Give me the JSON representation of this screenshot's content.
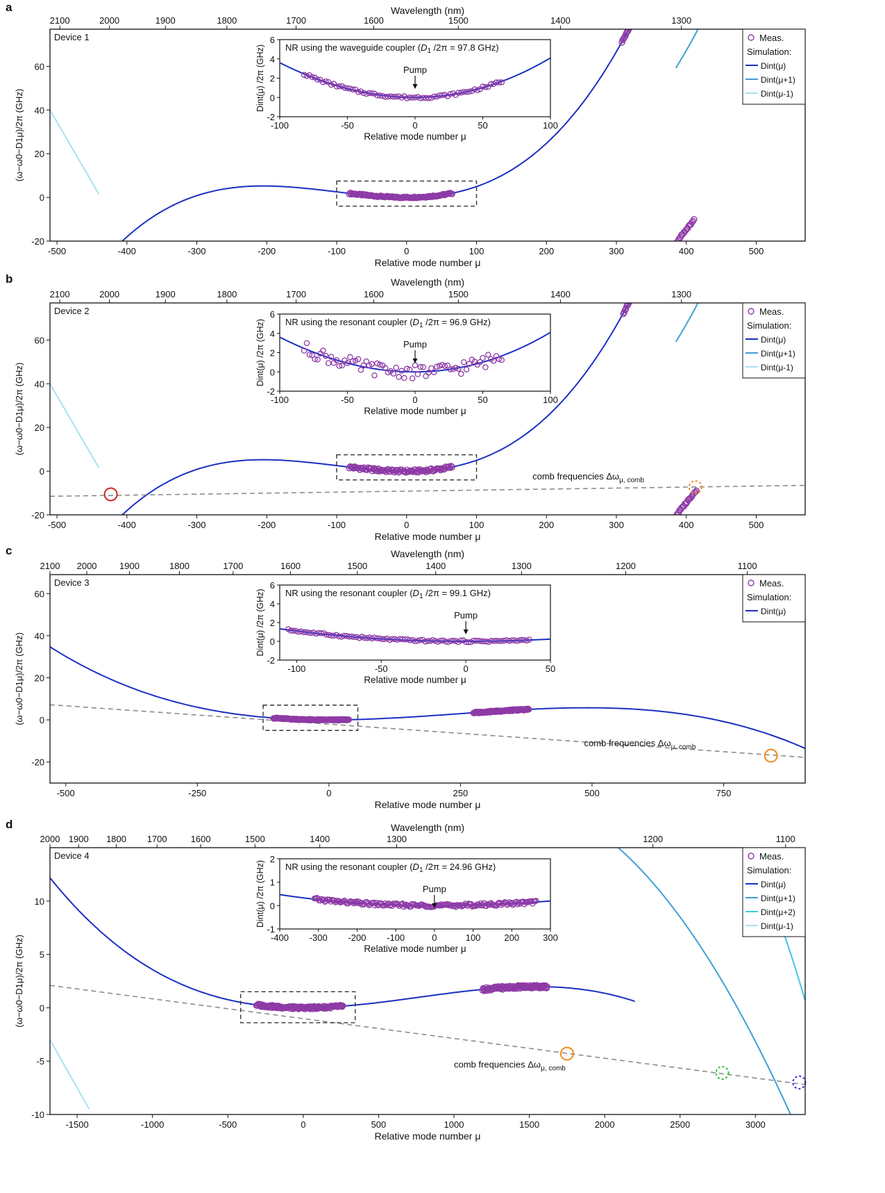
{
  "colors": {
    "dint": "#1b2fc2",
    "dint_p1": "#3f9fd6",
    "dint_p2": "#3ec6ea",
    "dint_m1": "#a9e0f0",
    "meas": "#8e3aa6",
    "comb": "#8c8c8c",
    "box": "#333333",
    "circle_red": "#cc2222",
    "circle_orange": "#f08a20",
    "circle_green": "#2ec02e",
    "circle_blue": "#3030e0"
  },
  "chart_data": [
    {
      "panel": "a",
      "type": "scatter",
      "device_label": "Device 1",
      "xlabel": "Relative mode number μ",
      "ylabel": "(ω−ω0−D1μ)/2π (GHz)",
      "top_axis_label": "Wavelength (nm)",
      "xlim": [
        -510,
        570
      ],
      "ylim": [
        -20,
        77
      ],
      "xticks": [
        -500,
        -400,
        -300,
        -200,
        -100,
        0,
        100,
        200,
        300,
        400,
        500
      ],
      "yticks": [
        -20,
        0,
        20,
        40,
        60
      ],
      "top_ticks": [
        {
          "label": "2100",
          "mu": -496
        },
        {
          "label": "2000",
          "mu": -425
        },
        {
          "label": "1900",
          "mu": -345
        },
        {
          "label": "1800",
          "mu": -257
        },
        {
          "label": "1700",
          "mu": -158
        },
        {
          "label": "1600",
          "mu": -47
        },
        {
          "label": "1500",
          "mu": 74
        },
        {
          "label": "1400",
          "mu": 220
        },
        {
          "label": "1300",
          "mu": 393
        }
      ],
      "curves": [
        {
          "name": "Dint(μ)",
          "color_key": "dint",
          "coef": [
            0,
            0,
            0.000375,
            1.22e-06
          ],
          "mu_shift": 0,
          "range": [
            -510,
            570
          ]
        },
        {
          "name": "Dint(μ+1)",
          "color_key": "dint_p1",
          "coef": [
            0,
            0,
            0.000375,
            1.22e-06
          ],
          "mu_shift": -99,
          "offset": 0,
          "range": [
            385,
            570
          ]
        },
        {
          "name": "Dint(μ-1)",
          "color_key": "dint_m1",
          "coef": [
            40,
            -0.55,
            0,
            0
          ],
          "mu_shift": 510,
          "range": [
            -510,
            -440
          ]
        }
      ],
      "measurements": [
        {
          "range": [
            -82,
            65
          ],
          "step": 1.5,
          "coef": [
            0,
            0,
            0.000375,
            1.22e-06
          ],
          "noise": 0.3
        },
        {
          "range": [
            308,
            388
          ],
          "step": 1.2,
          "coef": [
            0,
            0,
            0.000375,
            1.22e-06
          ],
          "noise": 0.4
        },
        {
          "range": [
            387,
            412
          ],
          "step": 1.5,
          "line": [
            -20,
            0.4
          ],
          "noise": 0.4
        }
      ],
      "dashed_box": {
        "x": [
          -100,
          100
        ],
        "y": [
          -4,
          7.5
        ]
      },
      "legend": [
        "Meas.",
        "Simulation:",
        "Dint(μ)",
        "Dint(μ+1)",
        "Dint(μ-1)"
      ],
      "inset": {
        "title": "NR using the waveguide coupler (D1/2π = 97.8 GHz)",
        "title_parts": [
          "NR using the waveguide coupler (",
          "D",
          "1",
          " /2π = 97.8 GHz)"
        ],
        "xlabel": "Relative mode number μ",
        "ylabel": "Dint(μ) /2π (GHz)",
        "xlim": [
          -100,
          100
        ],
        "ylim": [
          -2,
          6
        ],
        "xticks": [
          -100,
          -50,
          0,
          50,
          100
        ],
        "yticks": [
          -2,
          0,
          2,
          4,
          6
        ],
        "annotation": "Pump",
        "curve_coef": [
          0,
          0.0005,
          0.000385,
          2e-07
        ],
        "meas_range": [
          -82,
          65
        ],
        "meas_step": 2,
        "meas_noise": 0.12
      }
    },
    {
      "panel": "b",
      "type": "scatter",
      "device_label": "Device 2",
      "xlabel": "Relative mode number μ",
      "ylabel": "(ω−ω0−D1μ)/2π (GHz)",
      "top_axis_label": "Wavelength (nm)",
      "xlim": [
        -510,
        570
      ],
      "ylim": [
        -20,
        77
      ],
      "xticks": [
        -500,
        -400,
        -300,
        -200,
        -100,
        0,
        100,
        200,
        300,
        400,
        500
      ],
      "yticks": [
        -20,
        0,
        20,
        40,
        60
      ],
      "top_ticks": [
        {
          "label": "2100",
          "mu": -496
        },
        {
          "label": "2000",
          "mu": -425
        },
        {
          "label": "1900",
          "mu": -345
        },
        {
          "label": "1800",
          "mu": -257
        },
        {
          "label": "1700",
          "mu": -158
        },
        {
          "label": "1600",
          "mu": -47
        },
        {
          "label": "1500",
          "mu": 74
        },
        {
          "label": "1400",
          "mu": 220
        },
        {
          "label": "1300",
          "mu": 393
        }
      ],
      "curves": [
        {
          "name": "Dint(μ)",
          "color_key": "dint",
          "coef": [
            0,
            0,
            0.000375,
            1.22e-06
          ],
          "mu_shift": 0,
          "range": [
            -510,
            570
          ]
        },
        {
          "name": "Dint(μ+1)",
          "color_key": "dint_p1",
          "coef": [
            0,
            0,
            0.000375,
            1.22e-06
          ],
          "mu_shift": -99,
          "range": [
            385,
            570
          ]
        },
        {
          "name": "Dint(μ-1)",
          "color_key": "dint_m1",
          "coef": [
            40,
            -0.55,
            0,
            0
          ],
          "mu_shift": 510,
          "range": [
            -510,
            -440
          ]
        }
      ],
      "comb_line": {
        "at_start": -11.5,
        "at_end": -6.5,
        "label": "comb frequencies Δω",
        "label_sub": "μ, comb",
        "label_mu": 180,
        "label_y": -3.8
      },
      "circles": [
        {
          "mu": -423,
          "y": -10.6,
          "color_key": "circle_red",
          "dashed": false
        },
        {
          "mu": 413,
          "y": -7.3,
          "color_key": "circle_orange",
          "dashed": true
        }
      ],
      "measurements": [
        {
          "range": [
            -82,
            65
          ],
          "step": 1.5,
          "coef": [
            0,
            0,
            0.000375,
            1.22e-06
          ],
          "noise": 0.7
        },
        {
          "range": [
            310,
            388
          ],
          "step": 1.2,
          "coef": [
            0,
            0,
            0.000375,
            1.22e-06
          ],
          "noise": 0.4
        },
        {
          "range": [
            386,
            415
          ],
          "step": 1.5,
          "line": [
            -20,
            0.4
          ],
          "noise": 0.4
        }
      ],
      "dashed_box": {
        "x": [
          -100,
          100
        ],
        "y": [
          -4,
          7.5
        ]
      },
      "legend": [
        "Meas.",
        "Simulation:",
        "Dint(μ)",
        "Dint(μ+1)",
        "Dint(μ-1)"
      ],
      "inset": {
        "title": "NR using the resonant coupler (D1/2π = 96.9 GHz)",
        "title_parts": [
          "NR using the resonant coupler (",
          "D",
          "1",
          " /2π = 96.9 GHz)"
        ],
        "xlabel": "Relative mode number μ",
        "ylabel": "Dint(μ) /2π (GHz)",
        "xlim": [
          -100,
          100
        ],
        "ylim": [
          -2,
          6
        ],
        "xticks": [
          -100,
          -50,
          0,
          50,
          100
        ],
        "yticks": [
          -2,
          0,
          2,
          4,
          6
        ],
        "annotation": "Pump",
        "curve_coef": [
          0,
          0.0005,
          0.000385,
          2e-07
        ],
        "meas_range": [
          -82,
          65
        ],
        "meas_step": 2,
        "meas_noise": 0.7
      }
    },
    {
      "panel": "c",
      "type": "scatter",
      "device_label": "Device 3",
      "xlabel": "Relative mode number μ",
      "ylabel": "(ω−ω0−D1μ)/2π (GHz)",
      "top_axis_label": "Wavelength (nm)",
      "xlim": [
        -530,
        905
      ],
      "ylim": [
        -30,
        69
      ],
      "xticks": [
        -500,
        -250,
        0,
        250,
        500,
        750
      ],
      "yticks": [
        -20,
        0,
        20,
        40,
        60
      ],
      "top_ticks": [
        {
          "label": "2100",
          "mu": -530
        },
        {
          "label": "2000",
          "mu": -460
        },
        {
          "label": "1900",
          "mu": -379
        },
        {
          "label": "1800",
          "mu": -284
        },
        {
          "label": "1700",
          "mu": -182
        },
        {
          "label": "1600",
          "mu": -73
        },
        {
          "label": "1500",
          "mu": 54
        },
        {
          "label": "1400",
          "mu": 203
        },
        {
          "label": "1300",
          "mu": 366
        },
        {
          "label": "1200",
          "mu": 564
        },
        {
          "label": "1100",
          "mu": 795
        }
      ],
      "curves": [
        {
          "name": "Dint(μ)",
          "color_key": "dint",
          "coef": [
            0,
            0,
            7.18e-05,
            -9.76e-08
          ],
          "mu_shift": 0,
          "range": [
            -530,
            905
          ]
        }
      ],
      "comb_line": {
        "at_start": 7.2,
        "at_end": -17.8,
        "label": "comb frequencies Δω",
        "label_sub": "μ, comb",
        "label_mu": 485,
        "label_y": -12.5
      },
      "circles": [
        {
          "mu": 840,
          "y": -17,
          "color_key": "circle_orange",
          "dashed": false
        }
      ],
      "measurements": [
        {
          "range": [
            -105,
            38
          ],
          "step": 1.5,
          "coef": [
            0,
            0,
            7.18e-05,
            -9.76e-08
          ],
          "noise": 0.2
        },
        {
          "range": [
            275,
            380
          ],
          "step": 1.2,
          "coef": [
            0,
            0,
            7.18e-05,
            -9.76e-08
          ],
          "noise": 0.3
        }
      ],
      "dashed_box": {
        "x": [
          -125,
          55
        ],
        "y": [
          -5,
          7
        ]
      },
      "legend": [
        "Meas.",
        "Simulation:",
        "Dint(μ)"
      ],
      "inset": {
        "title": "NR using the resonant coupler (D1/2π = 99.1 GHz)",
        "title_parts": [
          "NR using the resonant coupler (",
          "D",
          "1",
          " /2π = 99.1 GHz)"
        ],
        "xlabel": "Relative mode number μ",
        "ylabel": "Dint(μ) /2π (GHz)",
        "xlim": [
          -110,
          50
        ],
        "ylim": [
          -2,
          6
        ],
        "xticks": [
          -100,
          -50,
          0,
          50
        ],
        "yticks": [
          -2,
          0,
          2,
          4,
          6
        ],
        "annotation": "Pump",
        "curve_coef": [
          0,
          0,
          0.0001,
          -9.76e-08
        ],
        "meas_range": [
          -105,
          38
        ],
        "meas_step": 1.5,
        "meas_noise": 0.1
      }
    },
    {
      "panel": "d",
      "type": "scatter",
      "device_label": "Device 4",
      "xlabel": "Relative mode number μ",
      "ylabel": "(ω−ω0−D1μ)/2π (GHz)",
      "top_axis_label": "Wavelength (nm)",
      "xlim": [
        -1680,
        3330
      ],
      "ylim": [
        -10,
        15
      ],
      "xticks": [
        -1500,
        -1000,
        -500,
        0,
        500,
        1000,
        1500,
        2000,
        2500,
        3000
      ],
      "yticks": [
        -10,
        -5,
        0,
        5,
        10
      ],
      "top_ticks": [
        {
          "label": "2000",
          "mu": -1680
        },
        {
          "label": "1900",
          "mu": -1490
        },
        {
          "label": "1800",
          "mu": -1240
        },
        {
          "label": "1700",
          "mu": -970
        },
        {
          "label": "1600",
          "mu": -680
        },
        {
          "label": "1500",
          "mu": -320
        },
        {
          "label": "1400",
          "mu": 110
        },
        {
          "label": "1300",
          "mu": 620
        },
        {
          "label": "1200",
          "mu": 2320
        },
        {
          "label": "1100",
          "mu": 3200
        }
      ],
      "curves": [
        {
          "name": "Dint(μ)",
          "color_key": "dint",
          "coef": [
            0,
            0,
            2.5e-06,
            -1.08e-09
          ],
          "mu_shift": 0,
          "range": [
            -1680,
            2200
          ]
        },
        {
          "name": "Dint(μ+1)",
          "color_key": "dint_p1",
          "coef": [
            15,
            -0.0125,
            -8.2e-06,
            0
          ],
          "mu_shift": -2090,
          "range": [
            2090,
            3330
          ]
        },
        {
          "name": "Dint(μ+2)",
          "color_key": "dint_p2",
          "coef": [
            15,
            -0.027,
            -2.82e-05,
            0
          ],
          "mu_shift": -2950,
          "range": [
            2950,
            3330
          ]
        },
        {
          "name": "Dint(μ-1)",
          "color_key": "dint_m1",
          "coef": [
            -3,
            -0.025,
            0,
            0
          ],
          "mu_shift": 1680,
          "range": [
            -1680,
            -1420
          ]
        }
      ],
      "comb_line": {
        "at_start": 2.1,
        "at_end": -7.2,
        "label": "comb frequencies Δω",
        "label_sub": "μ, comb",
        "label_mu": 1000,
        "label_y": -5.6
      },
      "circles": [
        {
          "mu": 1750,
          "y": -4.3,
          "color_key": "circle_orange",
          "dashed": false
        },
        {
          "mu": 2780,
          "y": -6.1,
          "color_key": "circle_green",
          "dashed": true
        },
        {
          "mu": 3290,
          "y": -7.0,
          "color_key": "circle_blue",
          "dashed": true
        }
      ],
      "measurements": [
        {
          "range": [
            -310,
            265
          ],
          "step": 4,
          "coef": [
            0,
            0,
            2.5e-06,
            -1.08e-09
          ],
          "noise": 0.12
        },
        {
          "range": [
            1190,
            1620
          ],
          "step": 4,
          "coef": [
            0,
            0,
            2.5e-06,
            -1.08e-09
          ],
          "noise": 0.15
        }
      ],
      "dashed_box": {
        "x": [
          -415,
          345
        ],
        "y": [
          -1.4,
          1.5
        ]
      },
      "legend": [
        "Meas.",
        "Simulation:",
        "Dint(μ)",
        "Dint(μ+1)",
        "Dint(μ+2)",
        "Dint(μ-1)"
      ],
      "inset": {
        "title": "NR using the resonant coupler (D1/2π = 24.96 GHz)",
        "title_parts": [
          "NR using the resonant coupler (",
          "D",
          "1",
          " /2π = 24.96 GHz)"
        ],
        "xlabel": "Relative mode number μ",
        "ylabel": "Dint(μ) /2π (GHz)",
        "xlim": [
          -400,
          300
        ],
        "ylim": [
          -1,
          2
        ],
        "xticks": [
          -400,
          -300,
          -200,
          -100,
          0,
          100,
          200,
          300
        ],
        "yticks": [
          -1,
          0,
          1,
          2
        ],
        "annotation": "Pump",
        "curve_coef": [
          0,
          0,
          2.5e-06,
          -1.08e-09
        ],
        "meas_range": [
          -310,
          265
        ],
        "meas_step": 3,
        "meas_noise": 0.07
      }
    }
  ]
}
